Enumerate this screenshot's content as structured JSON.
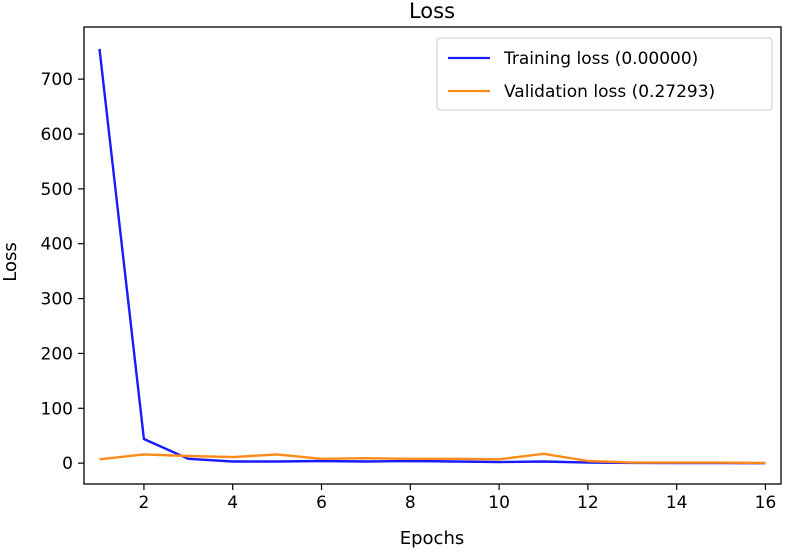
{
  "chart_data": {
    "type": "line",
    "title": "Loss",
    "xlabel": "Epochs",
    "ylabel": "Loss",
    "xlim": [
      0.65,
      16.35
    ],
    "ylim": [
      -38,
      795
    ],
    "xticks": [
      2,
      4,
      6,
      8,
      10,
      12,
      14,
      16
    ],
    "yticks": [
      0,
      100,
      200,
      300,
      400,
      500,
      600,
      700
    ],
    "grid": false,
    "legend_position": "top-right",
    "series": [
      {
        "name": "Training loss (0.00000)",
        "color": "#1a1aff",
        "x": [
          1,
          2,
          3,
          4,
          5,
          6,
          7,
          8,
          9,
          10,
          11,
          12,
          13,
          14,
          15,
          16
        ],
        "y": [
          755,
          44,
          8,
          3,
          3,
          4,
          3,
          4,
          3,
          2,
          3,
          1,
          0.5,
          0.3,
          0.2,
          0
        ]
      },
      {
        "name": "Validation loss (0.27293)",
        "color": "#ff8c1a",
        "x": [
          1,
          2,
          3,
          4,
          5,
          6,
          7,
          8,
          9,
          10,
          11,
          12,
          13,
          14,
          15,
          16
        ],
        "y": [
          7,
          16,
          13,
          11,
          16,
          8,
          9,
          8,
          8,
          7,
          17,
          4,
          1,
          1,
          1,
          0.3
        ]
      }
    ]
  }
}
